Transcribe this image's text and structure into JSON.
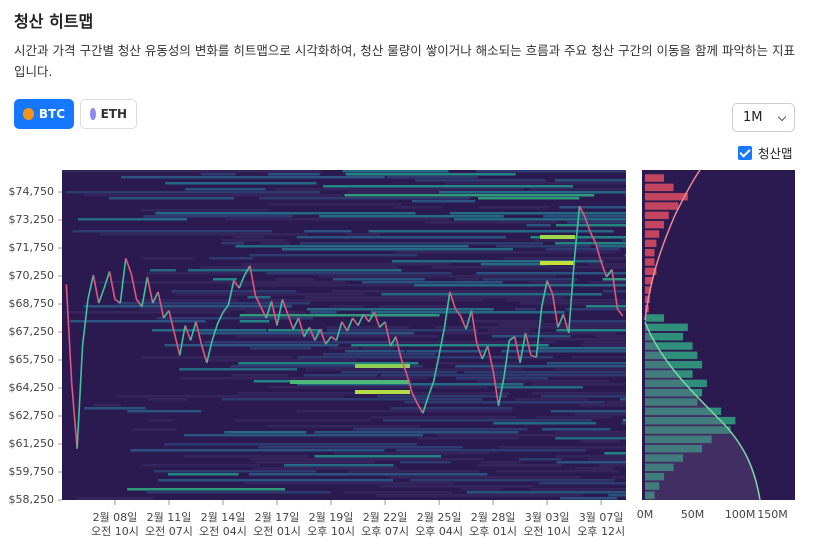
{
  "header": {
    "title": "청산 히트맵",
    "description": "시간과 가격 구간별 청산 유동성의 변화를 히트맵으로 시각화하여, 청산 물량이 쌓이거나 해소되는 흐름과 주요 청산 구간의 이동을 함께 파악하는 지표입니다."
  },
  "controls": {
    "coins": [
      "BTC",
      "ETH"
    ],
    "period": "1M",
    "toggle": "청산맵"
  },
  "chart_data": [
    {
      "type": "line",
      "xlim": [
        -0.98,
        9.46
      ],
      "ylim": [
        58250,
        75930
      ],
      "yticks": [
        {
          "value": 58250,
          "label": "$58,250"
        },
        {
          "value": 59750,
          "label": "$59,750"
        },
        {
          "value": 61250,
          "label": "$61,250"
        },
        {
          "value": 62750,
          "label": "$62,750"
        },
        {
          "value": 64250,
          "label": "$64,250"
        },
        {
          "value": 65750,
          "label": "$65,750"
        },
        {
          "value": 67250,
          "label": "$67,250"
        },
        {
          "value": 68750,
          "label": "$68,750"
        },
        {
          "value": 70250,
          "label": "$70,250"
        },
        {
          "value": 71750,
          "label": "$71,750"
        },
        {
          "value": 73250,
          "label": "$73,250"
        },
        {
          "value": 74750,
          "label": "$74,750"
        }
      ],
      "xticks": [
        {
          "value": 0,
          "label": "2월 08일",
          "time": "오전 10시"
        },
        {
          "value": 1,
          "label": "2월 11일",
          "time": "오전 07시"
        },
        {
          "value": 2,
          "label": "2월 14일",
          "time": "오전 04시"
        },
        {
          "value": 3,
          "label": "2월 17일",
          "time": "오전 01시"
        },
        {
          "value": 4,
          "label": "2월 19일",
          "time": "오후 10시"
        },
        {
          "value": 5,
          "label": "2월 22일",
          "time": "오후 07시"
        },
        {
          "value": 6,
          "label": "2월 25일",
          "time": "오후 04시"
        },
        {
          "value": 7,
          "label": "2월 28일",
          "time": "오후 01시"
        },
        {
          "value": 8,
          "label": "3월 03일",
          "time": "오전 10시"
        },
        {
          "value": 9,
          "label": "3월 07일",
          "time": "오후 12시"
        }
      ],
      "up_color": "#3cc49b",
      "down_color": "#e0587e",
      "x": [
        -0.9,
        -0.8,
        -0.7,
        -0.6,
        -0.5,
        -0.4,
        -0.3,
        -0.2,
        -0.1,
        0,
        0.1,
        0.2,
        0.3,
        0.4,
        0.5,
        0.6,
        0.7,
        0.8,
        0.9,
        1,
        1.1,
        1.2,
        1.3,
        1.4,
        1.5,
        1.6,
        1.7,
        1.8,
        1.9,
        2,
        2.1,
        2.2,
        2.3,
        2.4,
        2.5,
        2.6,
        2.7,
        2.8,
        2.9,
        3,
        3.1,
        3.2,
        3.3,
        3.4,
        3.5,
        3.6,
        3.7,
        3.8,
        3.9,
        4,
        4.1,
        4.2,
        4.3,
        4.4,
        4.5,
        4.6,
        4.7,
        4.8,
        4.9,
        5,
        5.1,
        5.2,
        5.3,
        5.4,
        5.5,
        5.6,
        5.7,
        5.8,
        5.9,
        6,
        6.1,
        6.2,
        6.3,
        6.4,
        6.5,
        6.6,
        6.7,
        6.8,
        6.9,
        7,
        7.1,
        7.2,
        7.3,
        7.4,
        7.5,
        7.6,
        7.7,
        7.8,
        7.9,
        8,
        8.1,
        8.2,
        8.3,
        8.4,
        8.5,
        8.6,
        8.7,
        8.8,
        8.9,
        9,
        9.1,
        9.2,
        9.3,
        9.4
      ],
      "values": [
        69800,
        64500,
        61000,
        66500,
        69000,
        70300,
        68800,
        69600,
        70500,
        69000,
        68800,
        71200,
        70400,
        69000,
        68600,
        70200,
        68800,
        69400,
        68000,
        68400,
        67200,
        66000,
        67600,
        66800,
        67800,
        66600,
        65600,
        66800,
        67700,
        68300,
        68700,
        70000,
        69600,
        70300,
        70800,
        69200,
        68600,
        68000,
        68900,
        67600,
        69000,
        68200,
        67400,
        68000,
        67000,
        67500,
        66800,
        67400,
        66600,
        67000,
        66800,
        67800,
        67300,
        68000,
        67600,
        68200,
        67800,
        68300,
        67500,
        67800,
        66500,
        67000,
        65800,
        65000,
        64000,
        63400,
        62900,
        63800,
        64600,
        66000,
        67500,
        69400,
        68500,
        68100,
        67400,
        68400,
        66600,
        65800,
        66500,
        65200,
        63300,
        64800,
        66800,
        67000,
        65600,
        67200,
        66000,
        65900,
        68600,
        70000,
        69300,
        67500,
        68200,
        67200,
        71000,
        74000,
        73400,
        72600,
        72000,
        71000,
        70200,
        70600,
        68500,
        68100
      ]
    },
    {
      "type": "hbar",
      "xlim": [
        0,
        165
      ],
      "ylim": [
        58250,
        75930
      ],
      "xticks": [
        {
          "value": 0,
          "label": "0M"
        },
        {
          "value": 50,
          "label": "50M"
        },
        {
          "value": 100,
          "label": "100M"
        },
        {
          "value": 150,
          "label": "150M"
        }
      ],
      "series": [
        {
          "color": "#c24660",
          "levels": [
            75500,
            75000,
            74500,
            74000,
            73500,
            73000,
            72500,
            72000,
            71500,
            71000,
            70500,
            70000,
            69500,
            69000,
            68500
          ],
          "values": [
            20,
            30,
            45,
            35,
            25,
            20,
            15,
            12,
            10,
            10,
            12,
            8,
            6,
            5,
            4
          ]
        },
        {
          "color": "#2f8f7a",
          "levels": [
            68000,
            67500,
            67000,
            66500,
            66000,
            65500,
            65000,
            64500,
            64000,
            63500,
            63000,
            62500,
            62000,
            61500,
            61000,
            60500,
            60000,
            59500,
            59000,
            58500
          ],
          "values": [
            20,
            45,
            40,
            50,
            55,
            60,
            50,
            65,
            60,
            55,
            80,
            95,
            90,
            70,
            60,
            40,
            30,
            20,
            15,
            10
          ]
        }
      ]
    }
  ]
}
